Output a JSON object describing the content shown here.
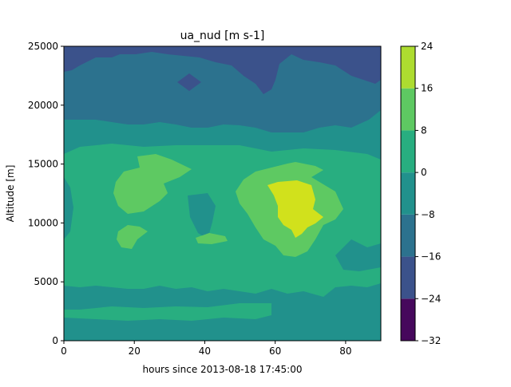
{
  "chart_data": {
    "type": "heatmap",
    "title": "ua_nud [m s-1]",
    "xlabel": "hours since 2013-08-18 17:45:00",
    "ylabel": "Altitude [m]",
    "xlim": [
      0,
      90
    ],
    "ylim": [
      0,
      25000
    ],
    "x_ticks": [
      "0",
      "20",
      "40",
      "60",
      "80"
    ],
    "y_ticks": [
      "0",
      "5000",
      "10000",
      "15000",
      "20000",
      "25000"
    ],
    "colorbar": {
      "levels": [
        -32,
        -24,
        -16,
        -8,
        0,
        8,
        16,
        24
      ],
      "tick_labels": [
        "−32",
        "−24",
        "−16",
        "−8",
        "0",
        "8",
        "16",
        "24"
      ],
      "colors": [
        "#46085c",
        "#3b528b",
        "#2c728e",
        "#21918c",
        "#28ae80",
        "#5ec962",
        "#addc30",
        "#d1e11c"
      ]
    },
    "fields": [
      {
        "name": "band_level_below_-16",
        "level_min": -24,
        "level_max": -16,
        "x": [
          0,
          90
        ],
        "y": [
          21500,
          25000
        ]
      },
      {
        "name": "band_level_-16_to_-8",
        "level_min": -16,
        "level_max": -8,
        "x": [
          0,
          90
        ],
        "y": [
          18800,
          25000
        ]
      },
      {
        "name": "band_level_-8_to_0",
        "level_min": -8,
        "level_max": 0,
        "x": [
          0,
          90
        ],
        "y": [
          0,
          25000
        ]
      },
      {
        "name": "band_level_0_to_8",
        "level_min": 0,
        "level_max": 8,
        "x": [
          0,
          90
        ],
        "y": [
          1000,
          17500
        ]
      },
      {
        "name": "band_level_8_to_16",
        "level_min": 8,
        "level_max": 16,
        "x": [
          10,
          76
        ],
        "y": [
          7500,
          15800
        ]
      },
      {
        "name": "band_level_16_to_24",
        "level_min": 16,
        "level_max": 24,
        "x": [
          58,
          74
        ],
        "y": [
          8600,
          13500
        ]
      }
    ]
  }
}
